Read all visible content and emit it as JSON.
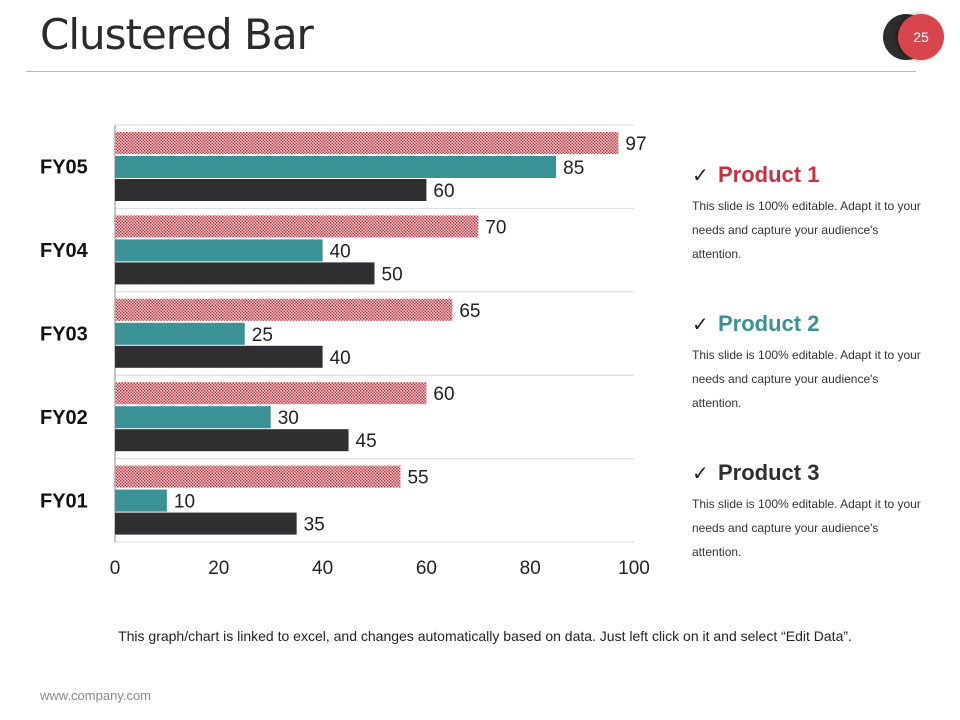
{
  "slide": {
    "title": "Clustered Bar",
    "page_number": "25",
    "footnote": "This graph/chart is linked to excel, and changes automatically  based on data. Just left click on it and select “Edit Data”.",
    "footer_url": "www.company.com"
  },
  "colors": {
    "product1": "#c8323f",
    "product2": "#3a9196",
    "product3": "#2f2f31",
    "grid": "#d9d9d9",
    "axis": "#8c8c8c"
  },
  "chart_data": {
    "type": "bar",
    "orientation": "horizontal",
    "categories": [
      "FY05",
      "FY04",
      "FY03",
      "FY02",
      "FY01"
    ],
    "series": [
      {
        "name": "Product 1",
        "values": [
          97,
          70,
          65,
          60,
          55
        ]
      },
      {
        "name": "Product 2",
        "values": [
          85,
          40,
          25,
          30,
          10
        ]
      },
      {
        "name": "Product 3",
        "values": [
          60,
          50,
          40,
          45,
          35
        ]
      }
    ],
    "xlim": [
      0,
      100
    ],
    "xticks": [
      0,
      20,
      40,
      60,
      80,
      100
    ],
    "title": "",
    "xlabel": "",
    "ylabel": "",
    "grid": true
  },
  "legend": {
    "items": [
      {
        "name": "Product 1",
        "check": "✓",
        "description": "This slide is 100% editable. Adapt it to your needs and capture your audience's attention."
      },
      {
        "name": "Product 2",
        "check": "✓",
        "description": "This slide is 100% editable. Adapt it to your needs and capture your audience's attention."
      },
      {
        "name": "Product 3",
        "check": "✓",
        "description": "This slide is 100% editable. Adapt it to your needs and capture your audience's attention."
      }
    ]
  }
}
